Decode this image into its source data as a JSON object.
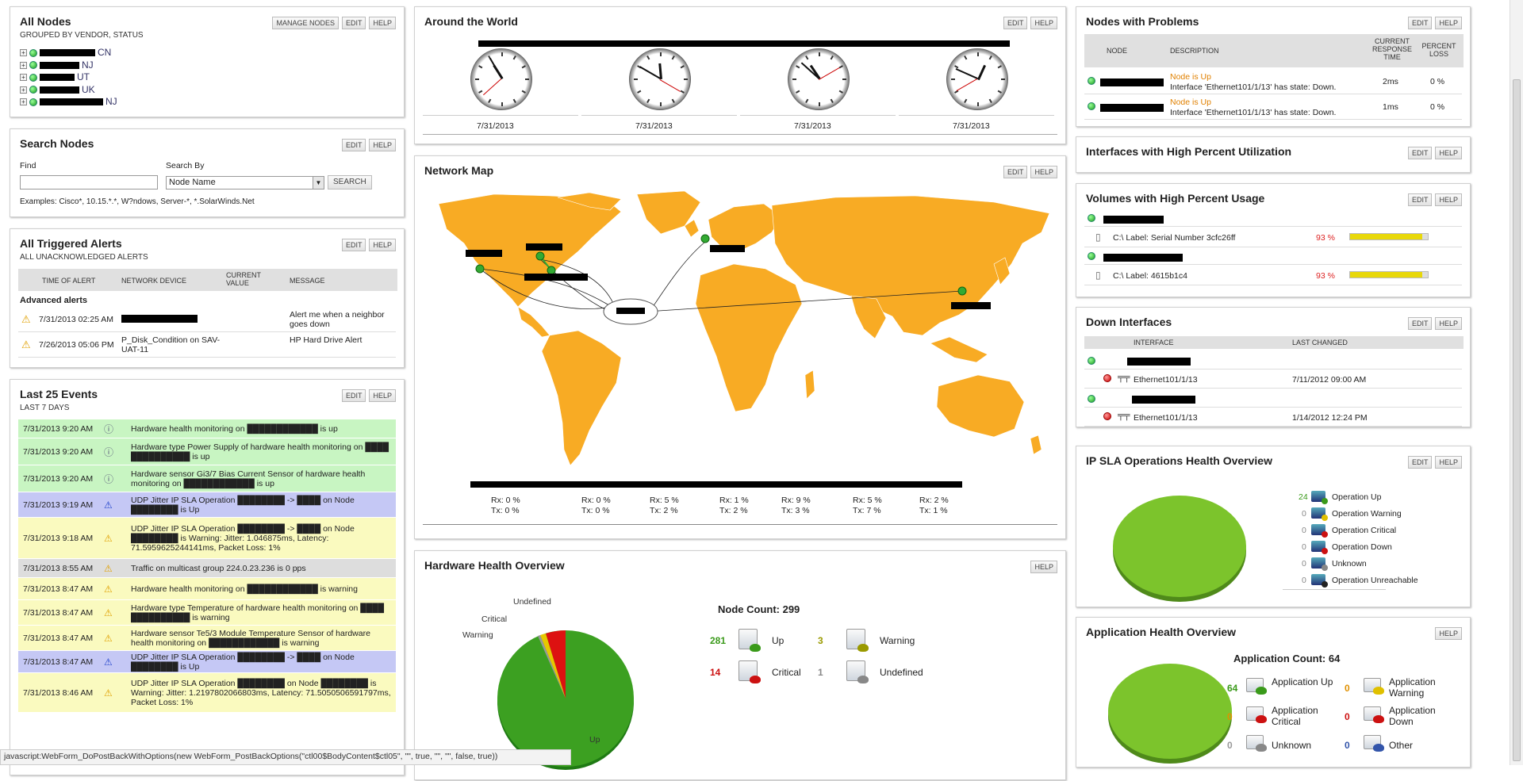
{
  "buttons": {
    "edit": "EDIT",
    "help": "HELP",
    "manage_nodes": "MANAGE NODES",
    "search": "SEARCH"
  },
  "all_nodes": {
    "title": "All Nodes",
    "subtitle": "GROUPED BY VENDOR, STATUS",
    "items": [
      {
        "suffix": "CN"
      },
      {
        "suffix": "NJ"
      },
      {
        "suffix": "UT"
      },
      {
        "suffix": "UK"
      },
      {
        "suffix": "NJ"
      }
    ]
  },
  "search_nodes": {
    "title": "Search Nodes",
    "find_label": "Find",
    "find_value": "",
    "search_by_label": "Search By",
    "search_by_value": "Node Name",
    "examples": "Examples: Cisco*, 10.15.*.*, W?ndows, Server-*, *.SolarWinds.Net"
  },
  "alerts": {
    "title": "All Triggered Alerts",
    "subtitle": "ALL UNACKNOWLEDGED ALERTS",
    "columns": [
      "TIME OF ALERT",
      "NETWORK DEVICE",
      "CURRENT VALUE",
      "MESSAGE"
    ],
    "group": "Advanced alerts",
    "rows": [
      {
        "time": "7/31/2013 02:25 AM",
        "device": "",
        "value": "",
        "message": "Alert me when a neighbor goes down"
      },
      {
        "time": "7/26/2013 05:06 PM",
        "device": "P_Disk_Condition on SAV-UAT-11",
        "value": "",
        "message": "HP Hard Drive Alert"
      }
    ]
  },
  "events": {
    "title": "Last 25 Events",
    "subtitle": "LAST 7 DAYS",
    "rows": [
      {
        "time": "7/31/2013 9:20 AM",
        "color": "green",
        "icon": "info",
        "msg": "Hardware health monitoring on ████████████ is up"
      },
      {
        "time": "7/31/2013 9:20 AM",
        "color": "green",
        "icon": "info",
        "msg": "Hardware type Power Supply of hardware health monitoring on ████ ██████████ is up"
      },
      {
        "time": "7/31/2013 9:20 AM",
        "color": "green",
        "icon": "info",
        "msg": "Hardware sensor Gi3/7 Bias Current Sensor of hardware health monitoring on ████████████ is up"
      },
      {
        "time": "7/31/2013 9:19 AM",
        "color": "blue",
        "icon": "blue",
        "msg": "UDP Jitter IP SLA Operation ████████ -> ████ on Node ████████ is Up"
      },
      {
        "time": "7/31/2013 9:18 AM",
        "color": "yellow",
        "icon": "warn",
        "msg": "UDP Jitter IP SLA Operation ████████ -> ████ on Node ████████ is Warning: Jitter: 1.046875ms, Latency: 71.5959625244141ms, Packet Loss: 1%"
      },
      {
        "time": "7/31/2013 8:55 AM",
        "color": "gray",
        "icon": "warn",
        "msg": "Traffic on multicast group 224.0.23.236 is 0 pps"
      },
      {
        "time": "7/31/2013 8:47 AM",
        "color": "yellow",
        "icon": "warn",
        "msg": "Hardware health monitoring on ████████████ is warning"
      },
      {
        "time": "7/31/2013 8:47 AM",
        "color": "yellow",
        "icon": "warn",
        "msg": "Hardware type Temperature of hardware health monitoring on ████ ██████████ is warning"
      },
      {
        "time": "7/31/2013 8:47 AM",
        "color": "yellow",
        "icon": "warn",
        "msg": "Hardware sensor Te5/3 Module Temperature Sensor of hardware health monitoring on ████████████ is warning"
      },
      {
        "time": "7/31/2013 8:47 AM",
        "color": "blue",
        "icon": "blue",
        "msg": "UDP Jitter IP SLA Operation ████████ -> ████ on Node ████████ is Up"
      },
      {
        "time": "7/31/2013 8:46 AM",
        "color": "yellow",
        "icon": "warn",
        "msg": "UDP Jitter IP SLA Operation ████████ on Node ████████ is Warning: Jitter: 1.2197802066803ms, Latency: 71.5050506591797ms, Packet Loss: 1%"
      }
    ]
  },
  "world": {
    "title": "Around the World",
    "dates": [
      "7/31/2013",
      "7/31/2013",
      "7/31/2013",
      "7/31/2013"
    ]
  },
  "netmap": {
    "title": "Network Map",
    "stats": [
      {
        "rx": "Rx: 0 %",
        "tx": "Tx: 0 %"
      },
      {
        "rx": "Rx: 0 %",
        "tx": "Tx: 0 %"
      },
      {
        "rx": "Rx: 5 %",
        "tx": "Tx: 2 %"
      },
      {
        "rx": "Rx: 1 %",
        "tx": "Tx: 2 %"
      },
      {
        "rx": "Rx: 9 %",
        "tx": "Tx: 3 %"
      },
      {
        "rx": "Rx: 5 %",
        "tx": "Tx: 7 %"
      },
      {
        "rx": "Rx: 2 %",
        "tx": "Tx: 1 %"
      }
    ]
  },
  "hardware": {
    "title": "Hardware Health Overview",
    "node_count": "Node Count: 299",
    "pie_labels": {
      "undefined": "Undefined",
      "critical": "Critical",
      "warning": "Warning",
      "up": "Up"
    },
    "legend": [
      {
        "count": "281",
        "label": "Up",
        "color": "#3a9a1a"
      },
      {
        "count": "3",
        "label": "Warning",
        "color": "#9a9a00"
      },
      {
        "count": "14",
        "label": "Critical",
        "color": "#cc1111"
      },
      {
        "count": "1",
        "label": "Undefined",
        "color": "#888888"
      }
    ]
  },
  "problems": {
    "title": "Nodes with Problems",
    "columns": [
      "NODE",
      "DESCRIPTION",
      "CURRENT RESPONSE TIME",
      "PERCENT LOSS"
    ],
    "rows": [
      {
        "status": "Node is Up",
        "desc": "Interface 'Ethernet101/1/13' has state: Down.",
        "time": "2ms",
        "loss": "0 %"
      },
      {
        "status": "Node is Up",
        "desc": "Interface 'Ethernet101/1/13' has state: Down.",
        "time": "1ms",
        "loss": "0 %"
      }
    ]
  },
  "high_util": {
    "title": "Interfaces with High Percent Utilization"
  },
  "volumes": {
    "title": "Volumes with High Percent Usage",
    "rows": [
      {
        "label": "C:\\ Label: Serial Number 3cfc26ff",
        "pct": "93 %",
        "fill": 0.93
      },
      {
        "label": "C:\\ Label: 4615b1c4",
        "pct": "93 %",
        "fill": 0.93
      }
    ]
  },
  "down_ifaces": {
    "title": "Down Interfaces",
    "columns": [
      "INTERFACE",
      "LAST CHANGED"
    ],
    "rows": [
      {
        "iface": "Ethernet101/1/13",
        "changed": "7/11/2012 09:00 AM"
      },
      {
        "iface": "Ethernet101/1/13",
        "changed": "1/14/2012 12:24 PM"
      }
    ]
  },
  "ipsla": {
    "title": "IP SLA Operations Health Overview",
    "legend": [
      {
        "count": "24",
        "label": "Operation Up",
        "color": "#3a9a1a"
      },
      {
        "count": "0",
        "label": "Operation Warning",
        "color": "#e0c000"
      },
      {
        "count": "0",
        "label": "Operation Critical",
        "color": "#cc1111"
      },
      {
        "count": "0",
        "label": "Operation Down",
        "color": "#cc1111"
      },
      {
        "count": "0",
        "label": "Unknown",
        "color": "#888888"
      },
      {
        "count": "0",
        "label": "Operation Unreachable",
        "color": "#222222"
      }
    ]
  },
  "apphealth": {
    "title": "Application Health Overview",
    "app_count": "Application Count: 64",
    "legend": [
      {
        "count": "64",
        "label": "Application Up",
        "color": "#3a9a1a"
      },
      {
        "count": "0",
        "label": "Application Warning",
        "color": "#e0c000"
      },
      {
        "count": "0",
        "label": "Application Critical",
        "color": "#cc1111"
      },
      {
        "count": "0",
        "label": "Application Down",
        "color": "#cc1111"
      },
      {
        "count": "0",
        "label": "Unknown",
        "color": "#888888"
      },
      {
        "count": "0",
        "label": "Other",
        "color": "#3355aa"
      }
    ]
  },
  "statusbar": "javascript:WebForm_DoPostBackWithOptions(new WebForm_PostBackOptions(\"ctl00$BodyContent$ctl05\", \"\", true, \"\", \"\", false, true))"
}
